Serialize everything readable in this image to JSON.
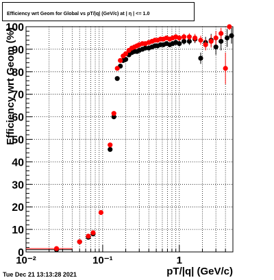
{
  "title": "Efficiency wrt Geom for Global vs pT/|q| (GeV/c) at | η | <= 1.0",
  "footer": "Tue Dec 21 13:13:28 2021",
  "chart_data": {
    "type": "scatter",
    "xlabel": "pT/|q| (GeV/c)",
    "ylabel": "Efficiency wrt Geom (%)",
    "xscale": "log",
    "xlim": [
      0.01,
      5
    ],
    "ylim": [
      0,
      100
    ],
    "grid": true,
    "x_ticks": [
      {
        "value": 0.01,
        "label": "10⁻²"
      },
      {
        "value": 0.1,
        "label": "10⁻¹"
      },
      {
        "value": 1,
        "label": "1"
      }
    ],
    "y_ticks": [
      0,
      10,
      20,
      30,
      40,
      50,
      60,
      70,
      80,
      90,
      100
    ],
    "series": [
      {
        "color": "#000000",
        "points": [
          {
            "x": 0.025,
            "y": 1.0,
            "xerr": [
              0.01,
              0.04
            ],
            "yerr": 0.3
          },
          {
            "x": 0.05,
            "y": 4.5,
            "yerr": 0.5
          },
          {
            "x": 0.065,
            "y": 6.5,
            "yerr": 0.6
          },
          {
            "x": 0.075,
            "y": 8.0,
            "yerr": 0.6
          },
          {
            "x": 0.125,
            "y": 45.5,
            "yerr": 0.8
          },
          {
            "x": 0.14,
            "y": 60.0,
            "yerr": 0.8
          },
          {
            "x": 0.155,
            "y": 77.0,
            "yerr": 0.8
          },
          {
            "x": 0.17,
            "y": 82.5,
            "yerr": 0.7
          },
          {
            "x": 0.185,
            "y": 85.0,
            "yerr": 0.7
          },
          {
            "x": 0.2,
            "y": 85.5,
            "yerr": 0.7
          },
          {
            "x": 0.22,
            "y": 87.5,
            "yerr": 0.7
          },
          {
            "x": 0.24,
            "y": 88.5,
            "yerr": 0.7
          },
          {
            "x": 0.26,
            "y": 89.0,
            "yerr": 0.7
          },
          {
            "x": 0.28,
            "y": 89.0,
            "yerr": 0.7
          },
          {
            "x": 0.3,
            "y": 89.5,
            "yerr": 0.8
          },
          {
            "x": 0.33,
            "y": 90.0,
            "yerr": 0.8
          },
          {
            "x": 0.36,
            "y": 90.5,
            "yerr": 0.8
          },
          {
            "x": 0.4,
            "y": 90.5,
            "yerr": 0.8
          },
          {
            "x": 0.44,
            "y": 91.0,
            "yerr": 0.9
          },
          {
            "x": 0.48,
            "y": 91.5,
            "yerr": 0.9
          },
          {
            "x": 0.52,
            "y": 91.5,
            "yerr": 0.9
          },
          {
            "x": 0.57,
            "y": 92.0,
            "yerr": 1.0
          },
          {
            "x": 0.62,
            "y": 92.0,
            "yerr": 1.0
          },
          {
            "x": 0.68,
            "y": 92.5,
            "yerr": 1.0
          },
          {
            "x": 0.75,
            "y": 92.0,
            "yerr": 1.1
          },
          {
            "x": 0.82,
            "y": 92.5,
            "yerr": 1.1
          },
          {
            "x": 0.9,
            "y": 93.0,
            "yerr": 1.2
          },
          {
            "x": 1.0,
            "y": 92.5,
            "yerr": 1.3
          },
          {
            "x": 1.15,
            "y": 93.5,
            "yerr": 1.4
          },
          {
            "x": 1.35,
            "y": 93.5,
            "yerr": 1.6
          },
          {
            "x": 1.6,
            "y": 94.5,
            "yerr": 1.8
          },
          {
            "x": 1.9,
            "y": 86.0,
            "yerr": 2.5
          },
          {
            "x": 2.2,
            "y": 93.0,
            "yerr": 2.5
          },
          {
            "x": 2.6,
            "y": 94.0,
            "yerr": 2.8
          },
          {
            "x": 3.0,
            "y": 91.0,
            "yerr": 3.5
          },
          {
            "x": 3.5,
            "y": 93.5,
            "yerr": 4.0
          },
          {
            "x": 4.2,
            "y": 95.0,
            "yerr": 4.0
          },
          {
            "x": 4.8,
            "y": 96.0,
            "yerr": 3.5
          }
        ]
      },
      {
        "color": "#ff0000",
        "points": [
          {
            "x": 0.025,
            "y": 1.5,
            "xerr": [
              0.01,
              0.04
            ],
            "yerr": 0.3
          },
          {
            "x": 0.05,
            "y": 4.5,
            "yerr": 0.5
          },
          {
            "x": 0.065,
            "y": 7.0,
            "yerr": 0.6
          },
          {
            "x": 0.075,
            "y": 8.5,
            "yerr": 0.6
          },
          {
            "x": 0.095,
            "y": 17.5,
            "yerr": 0.7
          },
          {
            "x": 0.125,
            "y": 47.5,
            "yerr": 0.8
          },
          {
            "x": 0.14,
            "y": 61.5,
            "yerr": 0.8
          },
          {
            "x": 0.155,
            "y": 81.5,
            "yerr": 0.8
          },
          {
            "x": 0.17,
            "y": 85.0,
            "yerr": 0.7
          },
          {
            "x": 0.185,
            "y": 87.0,
            "yerr": 0.7
          },
          {
            "x": 0.2,
            "y": 88.0,
            "yerr": 0.7
          },
          {
            "x": 0.22,
            "y": 89.5,
            "yerr": 0.7
          },
          {
            "x": 0.24,
            "y": 90.5,
            "yerr": 0.7
          },
          {
            "x": 0.26,
            "y": 91.0,
            "yerr": 0.7
          },
          {
            "x": 0.28,
            "y": 91.5,
            "yerr": 0.7
          },
          {
            "x": 0.3,
            "y": 92.0,
            "yerr": 0.8
          },
          {
            "x": 0.33,
            "y": 92.5,
            "yerr": 0.8
          },
          {
            "x": 0.36,
            "y": 92.5,
            "yerr": 0.8
          },
          {
            "x": 0.4,
            "y": 93.0,
            "yerr": 0.8
          },
          {
            "x": 0.44,
            "y": 93.5,
            "yerr": 0.9
          },
          {
            "x": 0.48,
            "y": 94.0,
            "yerr": 0.9
          },
          {
            "x": 0.52,
            "y": 94.0,
            "yerr": 0.9
          },
          {
            "x": 0.57,
            "y": 94.5,
            "yerr": 1.0
          },
          {
            "x": 0.62,
            "y": 94.5,
            "yerr": 1.0
          },
          {
            "x": 0.68,
            "y": 95.0,
            "yerr": 1.0
          },
          {
            "x": 0.75,
            "y": 94.5,
            "yerr": 1.1
          },
          {
            "x": 0.82,
            "y": 95.0,
            "yerr": 1.1
          },
          {
            "x": 0.9,
            "y": 95.5,
            "yerr": 1.2
          },
          {
            "x": 1.0,
            "y": 95.0,
            "yerr": 1.3
          },
          {
            "x": 1.15,
            "y": 95.5,
            "yerr": 1.4
          },
          {
            "x": 1.35,
            "y": 95.5,
            "yerr": 1.6
          },
          {
            "x": 1.6,
            "y": 95.0,
            "yerr": 1.8
          },
          {
            "x": 1.9,
            "y": 94.0,
            "yerr": 2.0
          },
          {
            "x": 2.2,
            "y": 92.0,
            "yerr": 2.5
          },
          {
            "x": 2.6,
            "y": 93.5,
            "yerr": 2.8
          },
          {
            "x": 3.0,
            "y": 95.0,
            "yerr": 3.0
          },
          {
            "x": 3.5,
            "y": 97.0,
            "yerr": 2.5
          },
          {
            "x": 4.0,
            "y": 81.5,
            "yerr": 7.0
          },
          {
            "x": 4.5,
            "y": 100.0,
            "yerr": 1.5
          }
        ]
      }
    ]
  }
}
